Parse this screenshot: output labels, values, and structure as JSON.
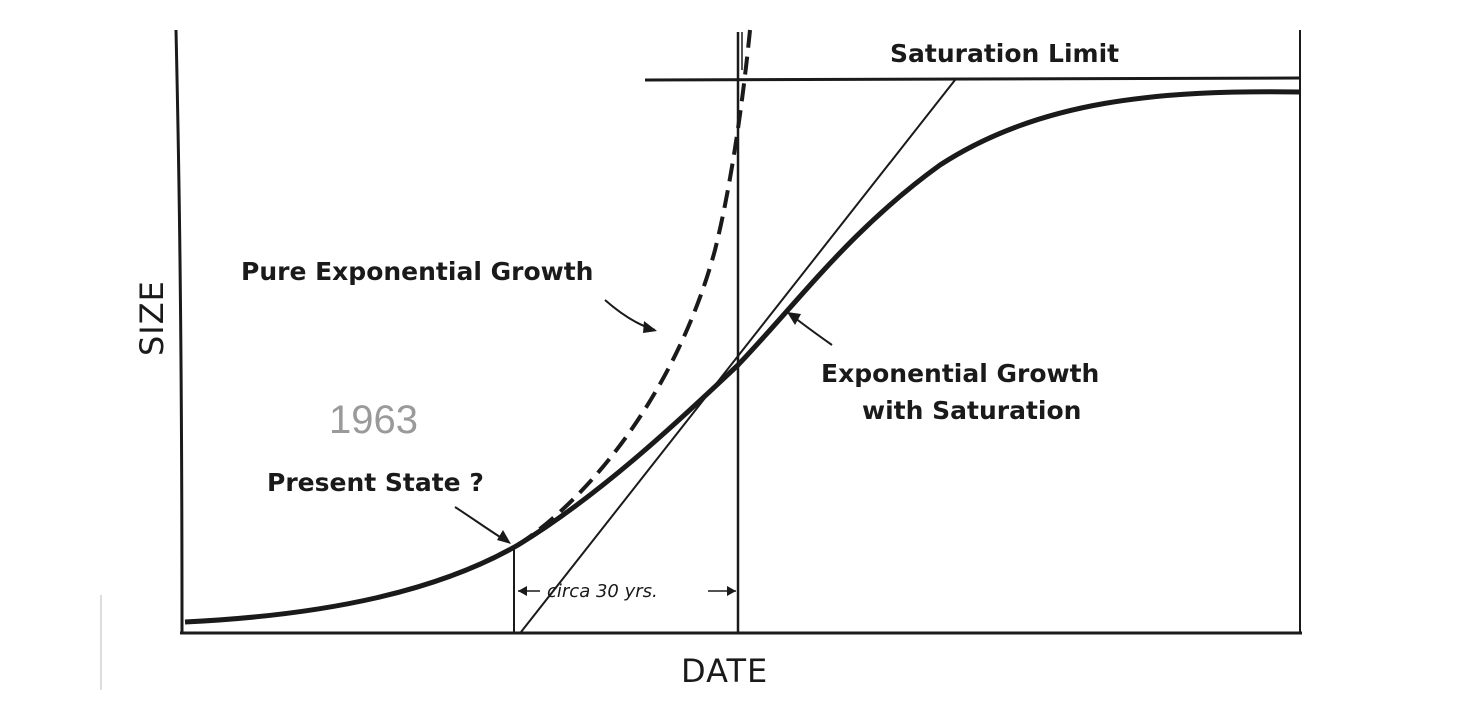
{
  "diagram": {
    "x_axis_label": "DATE",
    "y_axis_label": "SIZE",
    "saturation_label": "Saturation Limit",
    "pure_growth_label": "Pure Exponential Growth",
    "saturating_growth_label_line1": "Exponential Growth",
    "saturating_growth_label_line2": "with Saturation",
    "present_state_label": "Present State ?",
    "year_label": "1963",
    "interval_label": "circa 30 yrs."
  },
  "colors": {
    "ink": "#1a1a1a",
    "year_text": "#9a9a9a",
    "background": "#ffffff"
  }
}
